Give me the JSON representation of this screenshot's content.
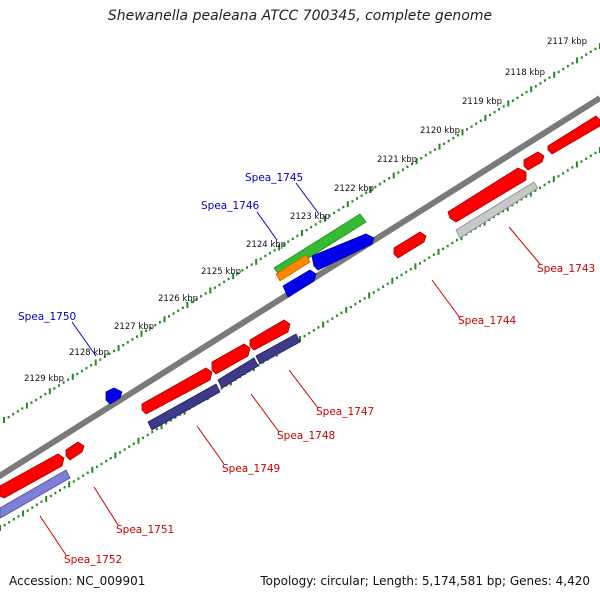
{
  "title": "Shewanella pealeana ATCC 700345, complete genome",
  "footer": {
    "accession": "Accession: NC_009901",
    "summary": "Topology: circular; Length: 5,174,581 bp; Genes: 4,420"
  },
  "colors": {
    "backbone": "#7a7a7a",
    "tick": "#1f8a1f",
    "forward_gene": "#ff0000",
    "reverse_gene_dark": "#3d3a8a",
    "reverse_gene_light": "#7f7fd8",
    "reverse_gene_grey": "#c8c8c8",
    "highlight_green": "#33bb33",
    "highlight_orange": "#ff8800",
    "blue_gene": "#0000ee",
    "label_red": "#cc0000",
    "label_blue": "#0000cc"
  },
  "scale_labels": [
    "2117 kbp",
    "2118 kbp",
    "2119 kbp",
    "2120 kbp",
    "2121 kbp",
    "2122 kbp",
    "2123 kbp",
    "2124 kbp",
    "2125 kbp",
    "2126 kbp",
    "2127 kbp",
    "2128 kbp",
    "2129 kbp"
  ],
  "gene_labels": {
    "spea_1745": "Spea_1745",
    "spea_1746": "Spea_1746",
    "spea_1750": "Spea_1750",
    "spea_1743": "Spea_1743",
    "spea_1744": "Spea_1744",
    "spea_1747": "Spea_1747",
    "spea_1748": "Spea_1748",
    "spea_1749": "Spea_1749",
    "spea_1751": "Spea_1751",
    "spea_1752": "Spea_1752"
  }
}
